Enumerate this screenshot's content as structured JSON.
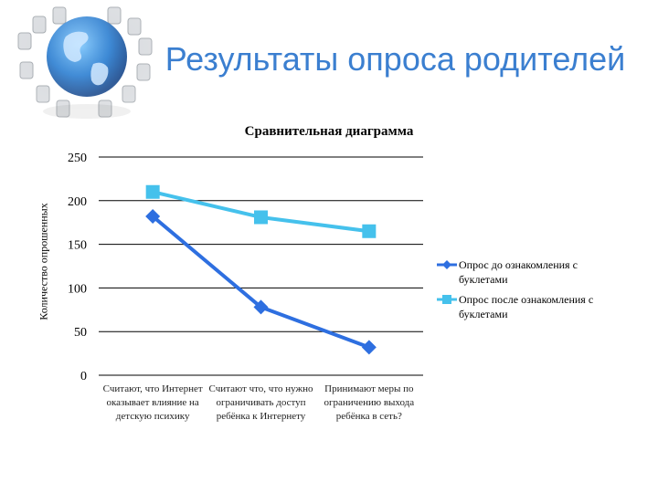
{
  "slide": {
    "title": "Результаты опроса родителей"
  },
  "logo": {
    "icon": "globe-with-chairs-icon"
  },
  "chart_data": {
    "type": "line",
    "title": "Сравнительная диаграмма",
    "ylabel": "Количество опрошенных",
    "xlabel": "",
    "ylim": [
      0,
      250
    ],
    "yticks": [
      0,
      50,
      100,
      150,
      200,
      250
    ],
    "grid": true,
    "legend_position": "right",
    "categories": [
      "Считают, что Интернет оказывает влияние на детскую психику",
      "Считают что, что нужно ограничивать доступ ребёнка к Интернету",
      "Принимают меры по ограничению выхода ребёнка в сеть?"
    ],
    "series": [
      {
        "name": "Опрос до ознакомления с буклетами",
        "values": [
          182,
          78,
          32
        ],
        "color": "#2e6fe0",
        "marker": "diamond"
      },
      {
        "name": "Опрос после ознакомления с буклетами",
        "values": [
          210,
          181,
          165
        ],
        "color": "#45c1ec",
        "marker": "square"
      }
    ]
  }
}
